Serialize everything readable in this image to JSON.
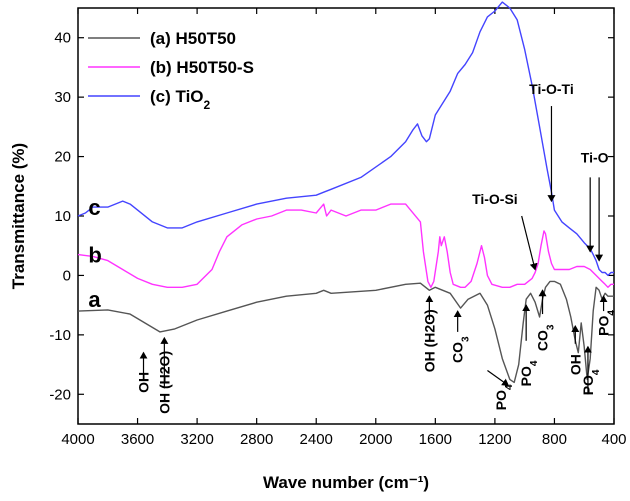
{
  "chart_data": {
    "type": "line",
    "xlabel": "Wave number (cm⁻¹)",
    "ylabel": "Transmittance (%)",
    "xlim": [
      4000,
      400
    ],
    "ylim": [
      -25,
      45
    ],
    "x_reversed": true,
    "x_ticks": [
      4000,
      3600,
      3200,
      2800,
      2400,
      2000,
      1600,
      1200,
      800,
      400
    ],
    "y_ticks": [
      -20,
      -10,
      0,
      10,
      20,
      30,
      40
    ],
    "legend_position": "top-left",
    "legend": [
      {
        "label": "(a) H50T50",
        "color": "#555555"
      },
      {
        "label": "(b) H50T50-S",
        "color": "#ff33ff"
      },
      {
        "label": "(c) TiO",
        "subscript": "2",
        "color": "#4444ff"
      }
    ],
    "curve_letters": [
      {
        "text": "c",
        "x": 3930,
        "y": 11.5
      },
      {
        "text": "b",
        "x": 3930,
        "y": 3.5
      },
      {
        "text": "a",
        "x": 3930,
        "y": -4
      }
    ],
    "series": [
      {
        "name": "(a) H50T50",
        "color": "#555555",
        "points": [
          [
            4000,
            -6
          ],
          [
            3800,
            -5.8
          ],
          [
            3650,
            -6.5
          ],
          [
            3550,
            -8
          ],
          [
            3450,
            -9.5
          ],
          [
            3350,
            -9
          ],
          [
            3200,
            -7.5
          ],
          [
            3000,
            -6
          ],
          [
            2800,
            -4.5
          ],
          [
            2600,
            -3.5
          ],
          [
            2400,
            -3
          ],
          [
            2350,
            -2.5
          ],
          [
            2300,
            -3
          ],
          [
            2000,
            -2.5
          ],
          [
            1800,
            -1.5
          ],
          [
            1700,
            -1.3
          ],
          [
            1640,
            -2.5
          ],
          [
            1600,
            -2
          ],
          [
            1500,
            -3
          ],
          [
            1430,
            -5.5
          ],
          [
            1380,
            -4
          ],
          [
            1300,
            -3
          ],
          [
            1250,
            -5
          ],
          [
            1200,
            -9
          ],
          [
            1150,
            -14
          ],
          [
            1100,
            -17.5
          ],
          [
            1070,
            -18
          ],
          [
            1040,
            -15
          ],
          [
            1010,
            -8
          ],
          [
            990,
            -4
          ],
          [
            960,
            -3
          ],
          [
            930,
            -4.5
          ],
          [
            900,
            -7
          ],
          [
            880,
            -4
          ],
          [
            860,
            -2
          ],
          [
            830,
            -1
          ],
          [
            800,
            -1
          ],
          [
            760,
            -1.5
          ],
          [
            720,
            -4
          ],
          [
            690,
            -7
          ],
          [
            660,
            -11
          ],
          [
            640,
            -13
          ],
          [
            620,
            -8
          ],
          [
            600,
            -12
          ],
          [
            580,
            -17.5
          ],
          [
            560,
            -14
          ],
          [
            540,
            -6
          ],
          [
            520,
            -2
          ],
          [
            500,
            -2.5
          ],
          [
            480,
            -4
          ],
          [
            460,
            -3
          ],
          [
            440,
            -3.5
          ],
          [
            400,
            -3.5
          ]
        ]
      },
      {
        "name": "(b) H50T50-S",
        "color": "#ff33ff",
        "points": [
          [
            4000,
            3.5
          ],
          [
            3900,
            3.2
          ],
          [
            3800,
            2.5
          ],
          [
            3700,
            1
          ],
          [
            3600,
            -0.5
          ],
          [
            3500,
            -1.5
          ],
          [
            3400,
            -2
          ],
          [
            3300,
            -2
          ],
          [
            3200,
            -1.5
          ],
          [
            3100,
            1
          ],
          [
            3050,
            4
          ],
          [
            3000,
            6.5
          ],
          [
            2900,
            8.5
          ],
          [
            2800,
            9.5
          ],
          [
            2700,
            10
          ],
          [
            2600,
            11
          ],
          [
            2500,
            11
          ],
          [
            2400,
            10.5
          ],
          [
            2350,
            12
          ],
          [
            2330,
            10
          ],
          [
            2300,
            11
          ],
          [
            2200,
            10
          ],
          [
            2100,
            11
          ],
          [
            2000,
            11
          ],
          [
            1900,
            12
          ],
          [
            1800,
            12
          ],
          [
            1700,
            9
          ],
          [
            1680,
            4
          ],
          [
            1650,
            -1
          ],
          [
            1630,
            -2
          ],
          [
            1610,
            -1
          ],
          [
            1580,
            4
          ],
          [
            1570,
            6.5
          ],
          [
            1560,
            5
          ],
          [
            1540,
            6.5
          ],
          [
            1520,
            4
          ],
          [
            1500,
            0.5
          ],
          [
            1480,
            -1.5
          ],
          [
            1430,
            -2
          ],
          [
            1400,
            -2
          ],
          [
            1360,
            -1
          ],
          [
            1320,
            2
          ],
          [
            1290,
            5
          ],
          [
            1270,
            3
          ],
          [
            1250,
            0
          ],
          [
            1220,
            -1.5
          ],
          [
            1150,
            -2
          ],
          [
            1100,
            -2
          ],
          [
            1050,
            -1.5
          ],
          [
            1000,
            -1.5
          ],
          [
            950,
            -0.5
          ],
          [
            930,
            0.5
          ],
          [
            910,
            2
          ],
          [
            890,
            5
          ],
          [
            870,
            7.5
          ],
          [
            860,
            7
          ],
          [
            840,
            4
          ],
          [
            820,
            2
          ],
          [
            800,
            1
          ],
          [
            750,
            1
          ],
          [
            700,
            1
          ],
          [
            650,
            1.5
          ],
          [
            600,
            1.5
          ],
          [
            560,
            1
          ],
          [
            540,
            0.5
          ],
          [
            520,
            0
          ],
          [
            500,
            -0.5
          ],
          [
            480,
            -1
          ],
          [
            460,
            -1.5
          ],
          [
            440,
            -2
          ],
          [
            420,
            -1.5
          ],
          [
            400,
            -1.5
          ]
        ]
      },
      {
        "name": "(c) TiO2",
        "color": "#4444ff",
        "points": [
          [
            4000,
            10
          ],
          [
            3950,
            10.5
          ],
          [
            3900,
            11.5
          ],
          [
            3800,
            11.5
          ],
          [
            3700,
            12.5
          ],
          [
            3650,
            12
          ],
          [
            3600,
            11
          ],
          [
            3500,
            9
          ],
          [
            3400,
            8
          ],
          [
            3300,
            8
          ],
          [
            3200,
            9
          ],
          [
            3000,
            10.5
          ],
          [
            2800,
            12
          ],
          [
            2600,
            13
          ],
          [
            2400,
            13.5
          ],
          [
            2350,
            14
          ],
          [
            2300,
            14.5
          ],
          [
            2100,
            16.5
          ],
          [
            1900,
            20
          ],
          [
            1800,
            22.5
          ],
          [
            1750,
            24.5
          ],
          [
            1720,
            25.5
          ],
          [
            1690,
            23.5
          ],
          [
            1660,
            22.5
          ],
          [
            1640,
            23
          ],
          [
            1600,
            27
          ],
          [
            1500,
            31
          ],
          [
            1450,
            34
          ],
          [
            1400,
            35.5
          ],
          [
            1350,
            37.5
          ],
          [
            1300,
            41
          ],
          [
            1250,
            43.5
          ],
          [
            1200,
            44.5
          ],
          [
            1150,
            46
          ],
          [
            1100,
            45
          ],
          [
            1050,
            43
          ],
          [
            1000,
            38
          ],
          [
            950,
            32
          ],
          [
            900,
            25
          ],
          [
            850,
            18
          ],
          [
            820,
            14
          ],
          [
            800,
            11
          ],
          [
            750,
            9
          ],
          [
            700,
            8
          ],
          [
            650,
            7
          ],
          [
            600,
            5.5
          ],
          [
            560,
            4.5
          ],
          [
            540,
            3.5
          ],
          [
            520,
            2.5
          ],
          [
            500,
            1
          ],
          [
            480,
            0.5
          ],
          [
            460,
            0.5
          ],
          [
            440,
            0
          ],
          [
            420,
            0.5
          ],
          [
            400,
            0.5
          ]
        ]
      }
    ],
    "annotations": [
      {
        "text": "OH",
        "kind": "vertical",
        "x": 3560,
        "y": -18,
        "arrow_from": [
          3560,
          -17.5
        ],
        "arrow_to": [
          3560,
          -13
        ]
      },
      {
        "text": "OH (H2O)",
        "kind": "vertical",
        "x": 3420,
        "y": -18,
        "arrow_from": [
          3420,
          -19
        ],
        "arrow_to": [
          3420,
          -10.5
        ]
      },
      {
        "text": "OH (H2O)",
        "kind": "vertical",
        "x": 1640,
        "y": -11,
        "arrow_from": [
          1640,
          -7.5
        ],
        "arrow_to": [
          1640,
          -3.5
        ]
      },
      {
        "text": "CO3",
        "kind": "vertical",
        "x": 1450,
        "y": -12.5,
        "arrow_from": [
          1450,
          -9.5
        ],
        "arrow_to": [
          1450,
          -6
        ]
      },
      {
        "text": "PO4",
        "kind": "vertical",
        "x": 1160,
        "y": -20.5,
        "arrow_from": [
          1250,
          -16
        ],
        "arrow_to": [
          1110,
          -18.5
        ]
      },
      {
        "text": "PO4",
        "kind": "vertical",
        "x": 990,
        "y": -16.5,
        "arrow_from": [
          990,
          -11
        ],
        "arrow_to": [
          990,
          -5
        ]
      },
      {
        "text": "CO3",
        "kind": "vertical",
        "x": 880,
        "y": -10.5,
        "arrow_from": [
          880,
          -6.5
        ],
        "arrow_to": [
          880,
          -2.5
        ]
      },
      {
        "text": "OH",
        "kind": "vertical",
        "x": 660,
        "y": -15,
        "arrow_from": [
          660,
          -11.5
        ],
        "arrow_to": [
          660,
          -8.5
        ]
      },
      {
        "text": "PO4",
        "kind": "vertical",
        "x": 575,
        "y": -18,
        "arrow_from": [
          575,
          -20
        ],
        "arrow_to": [
          575,
          -12
        ]
      },
      {
        "text": "PO4",
        "kind": "vertical",
        "x": 470,
        "y": -8,
        "arrow_from": [
          470,
          -6
        ],
        "arrow_to": [
          470,
          -3.5
        ]
      },
      {
        "text": "Ti-O-Si",
        "kind": "horizontal",
        "x": 1200,
        "y": 12,
        "arrow_from": [
          1020,
          10
        ],
        "arrow_to": [
          930,
          1
        ]
      },
      {
        "text": "Ti-O-Ti",
        "kind": "horizontal",
        "x": 820,
        "y": 30.5,
        "arrow_from": [
          820,
          28.5
        ],
        "arrow_to": [
          820,
          12.5
        ]
      },
      {
        "text": "Ti-O",
        "kind": "horizontal",
        "x": 530,
        "y": 19,
        "arrow_from": [
          560,
          16.5
        ],
        "arrow_to": [
          560,
          4
        ]
      },
      {
        "text": "",
        "kind": "arrow-only",
        "arrow_from": [
          500,
          16.5
        ],
        "arrow_to": [
          500,
          2.5
        ]
      }
    ]
  }
}
